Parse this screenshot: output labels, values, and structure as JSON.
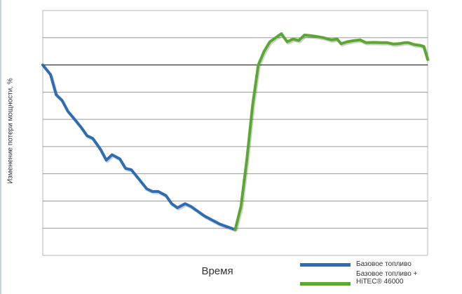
{
  "chart_data": {
    "type": "line",
    "title": "",
    "xlabel": "Время",
    "ylabel": "Изменение потери мощности, %",
    "xlim": [
      0,
      100
    ],
    "ylim": [
      -7,
      2
    ],
    "y_gridlines": [
      -7,
      -6,
      -5,
      -4,
      -3,
      -2,
      -1,
      0,
      1,
      2
    ],
    "zero_line": 0,
    "grid": true,
    "axis_tick_labels_shown": false,
    "legend_position": "bottom-right",
    "series": [
      {
        "name": "Базовое топливо",
        "color": "#2e6db4",
        "points": [
          [
            0,
            0
          ],
          [
            2,
            -0.35
          ],
          [
            3.5,
            -1.1
          ],
          [
            5,
            -1.3
          ],
          [
            6.5,
            -1.7
          ],
          [
            8,
            -1.95
          ],
          [
            10,
            -2.3
          ],
          [
            11.5,
            -2.6
          ],
          [
            13,
            -2.7
          ],
          [
            15,
            -3.1
          ],
          [
            16.5,
            -3.5
          ],
          [
            18,
            -3.3
          ],
          [
            20,
            -3.45
          ],
          [
            21.5,
            -3.8
          ],
          [
            23,
            -3.85
          ],
          [
            25,
            -4.2
          ],
          [
            27,
            -4.55
          ],
          [
            28.5,
            -4.65
          ],
          [
            30,
            -4.65
          ],
          [
            32,
            -4.8
          ],
          [
            33.5,
            -5.1
          ],
          [
            35,
            -5.25
          ],
          [
            37,
            -5.1
          ],
          [
            38.5,
            -5.2
          ],
          [
            40,
            -5.35
          ],
          [
            42,
            -5.55
          ],
          [
            44,
            -5.7
          ],
          [
            46,
            -5.85
          ],
          [
            50,
            -6.05
          ]
        ]
      },
      {
        "name": "Базовое топливо + HiTEC® 46000",
        "color": "#5aa832",
        "points": [
          [
            50,
            -6.05
          ],
          [
            51.5,
            -5.2
          ],
          [
            53,
            -3.5
          ],
          [
            54.5,
            -1.5
          ],
          [
            56,
            0
          ],
          [
            57.5,
            0.5
          ],
          [
            59,
            0.85
          ],
          [
            60.5,
            1.0
          ],
          [
            62,
            1.15
          ],
          [
            63.5,
            0.85
          ],
          [
            65,
            0.95
          ],
          [
            66.5,
            0.9
          ],
          [
            68,
            1.1
          ],
          [
            69.5,
            1.08
          ],
          [
            71,
            1.05
          ],
          [
            73,
            1.0
          ],
          [
            75,
            0.92
          ],
          [
            76.5,
            0.95
          ],
          [
            77.5,
            0.78
          ],
          [
            79,
            0.85
          ],
          [
            81,
            0.9
          ],
          [
            82.5,
            0.92
          ],
          [
            84,
            0.82
          ],
          [
            86,
            0.83
          ],
          [
            88,
            0.82
          ],
          [
            89.5,
            0.82
          ],
          [
            91,
            0.77
          ],
          [
            92.5,
            0.78
          ],
          [
            94,
            0.82
          ],
          [
            95,
            0.82
          ],
          [
            96.5,
            0.75
          ],
          [
            98,
            0.72
          ],
          [
            99,
            0.68
          ],
          [
            100,
            0.2
          ]
        ]
      }
    ]
  },
  "legend": {
    "item1": "Базовое топливо",
    "item2_line1": "Базовое топливо +",
    "item2_line2": "HiTEC® 46000"
  }
}
